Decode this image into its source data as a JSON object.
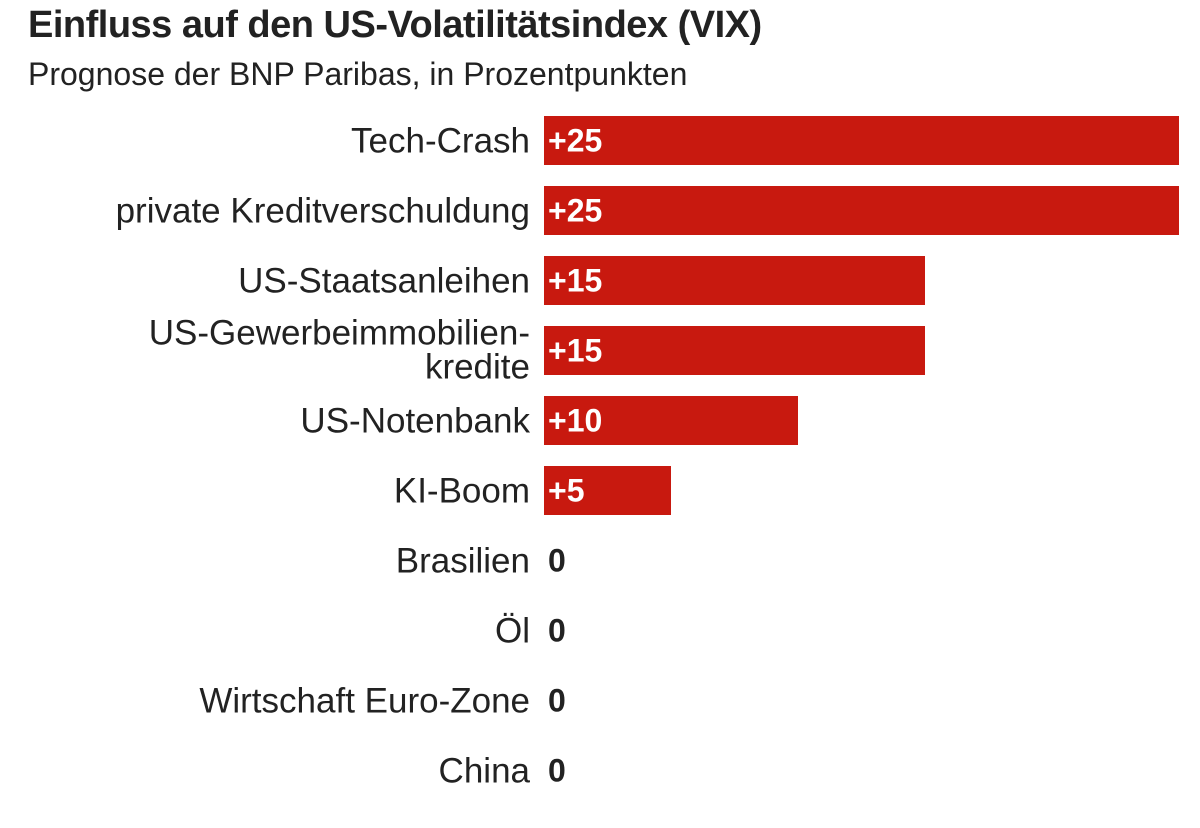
{
  "chart_data": {
    "type": "bar",
    "orientation": "horizontal",
    "title": "Einfluss auf den US-Volatilitätsindex (VIX)",
    "subtitle": "Prognose der BNP Paribas, in Prozentpunkten",
    "categories": [
      [
        "Tech-Crash"
      ],
      [
        "private Kreditverschuldung"
      ],
      [
        "US-Staatsanleihen"
      ],
      [
        "US-Gewerbeimmobilien-",
        "kredite"
      ],
      [
        "US-Notenbank"
      ],
      [
        "KI-Boom"
      ],
      [
        "Brasilien"
      ],
      [
        "Öl"
      ],
      [
        "Wirtschaft Euro-Zone"
      ],
      [
        "China"
      ]
    ],
    "values": [
      25,
      25,
      15,
      15,
      10,
      5,
      0,
      0,
      0,
      0
    ],
    "value_labels": [
      "+25",
      "+25",
      "+15",
      "+15",
      "+10",
      "+5",
      "0",
      "0",
      "0",
      "0"
    ],
    "xlim": [
      0,
      25
    ],
    "xlabel": "",
    "ylabel": "",
    "grid": false,
    "bar_color": "#c8190f"
  }
}
